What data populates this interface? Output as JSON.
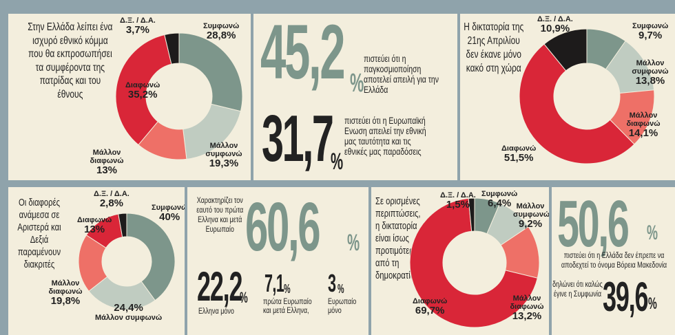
{
  "colors": {
    "green": "#7d968b",
    "lightgreen": "#c0ccc1",
    "red": "#d92638",
    "salmon": "#ee7067",
    "black": "#1d1b1b",
    "panel": "#f3eedd",
    "bg": "#8fa3ab"
  },
  "p1": {
    "text": "Στην Ελλάδα λείπει ένα ισχυρό εθνικό κόμμα που θα εκπροσωπήσει τα συμφέροντα της πατρίδας και του έθνους",
    "labels": {
      "agree": "Συμφωνώ",
      "agree_v": "28,8%",
      "ragree": "Μάλλον συμφωνώ",
      "ragree_v": "19,3%",
      "rdis": "Μάλλον διαφωνώ",
      "rdis_v": "13%",
      "dis": "Διαφωνώ",
      "dis_v": "35,2%",
      "dk": "Δ.Ξ. / Δ.Α.",
      "dk_v": "3,7%"
    }
  },
  "p2": {
    "big1": "45,2",
    "pct1": "%",
    "text1": "πιστεύει ότι η παγκοσμιοποίηση αποτελεί απειλή για την Ελλάδα",
    "big2": "31,7",
    "pct2": "%",
    "text2": "πιστεύει ότι η Ευρωπαϊκή Ενωση απειλεί την εθνική μας ταυτότητα και τις εθνικές μας παραδόσεις"
  },
  "p3": {
    "text": "Η δικτατορία της 21ης Απριλίου δεν έκανε μόνο κακό στη χώρα",
    "labels": {
      "dk": "Δ.Ξ. / Δ.Α.",
      "dk_v": "10,9%",
      "agree": "Συμφωνώ",
      "agree_v": "9,7%",
      "ragree": "Μάλλον συμφωνώ",
      "ragree_v": "13,8%",
      "rdis": "Μάλλον διαφωνώ",
      "rdis_v": "14,1%",
      "dis": "Διαφωνώ",
      "dis_v": "51,5%"
    }
  },
  "p4": {
    "text": "Οι διαφορές ανάμεσα σε Αριστερά και Δεξιά παραμένουν διακριτές",
    "labels": {
      "dk": "Δ.Ξ. / Δ.Α.",
      "dk_v": "2,8%",
      "agree": "Συμφωνώ",
      "agree_v": "40%",
      "dis": "Διαφωνώ",
      "dis_v": "13%",
      "rdis": "Μάλλον διαφωνώ",
      "rdis_v": "19,8%",
      "ragree": "Μάλλον συμφωνώ",
      "ragree_v": "24,4%"
    }
  },
  "p5": {
    "text": "Χαρακτηρίζει τον εαυτό του πρώτα Ελληνα και μετά Ευρωπαίο",
    "big": "60,6",
    "pct": "%",
    "s1_big": "22,2",
    "s1_pct": "%",
    "s1_text": "Ελληνα μόνο",
    "s2_big": "7,1",
    "s2_pct": "%",
    "s2_text": "πρώτα Ευρωπαίο και μετά Ελληνα,",
    "s3_big": "3",
    "s3_pct": "%",
    "s3_text": "Ευρωπαίο μόνο"
  },
  "p6": {
    "text": "Σε ορισμένες περιπτώσεις, η δικτατορία είναι ίσως προτιμότερη από τη δημοκρατία;",
    "labels": {
      "dk": "Δ.Ξ. / Δ.Α.",
      "dk_v": "1,5%",
      "agree": "Συμφωνώ",
      "agree_v": "6,4%",
      "ragree": "Μάλλον συμφωνώ",
      "ragree_v": "9,2%",
      "rdis": "Μάλλον διαφωνώ",
      "rdis_v": "13,2%",
      "dis": "Διαφωνώ",
      "dis_v": "69,7%"
    }
  },
  "p7": {
    "big1": "50,6",
    "pct1": "%",
    "text1": "πιστεύει ότι η Ελλάδα δεν έπρεπε να αποδεχτεί το όνομα Βόρεια Μακεδονία",
    "text2": "δηλώνει ότι καλώς έγινε η Συμφωνία",
    "big2": "39,6",
    "pct2": "%"
  },
  "chart_data": [
    {
      "type": "pie",
      "title": "Στην Ελλάδα λείπει ένα ισχυρό εθνικό κόμμα που θα εκπροσωπήσει τα συμφέροντα της πατρίδας και του έθνους",
      "categories": [
        "Συμφωνώ",
        "Μάλλον συμφωνώ",
        "Μάλλον διαφωνώ",
        "Διαφωνώ",
        "Δ.Ξ. / Δ.Α."
      ],
      "values": [
        28.8,
        19.3,
        13,
        35.2,
        3.7
      ]
    },
    {
      "type": "pie",
      "title": "Η δικτατορία της 21ης Απριλίου δεν έκανε μόνο κακό στη χώρα",
      "categories": [
        "Συμφωνώ",
        "Μάλλον συμφωνώ",
        "Μάλλον διαφωνώ",
        "Διαφωνώ",
        "Δ.Ξ. / Δ.Α."
      ],
      "values": [
        9.7,
        13.8,
        14.1,
        51.5,
        10.9
      ]
    },
    {
      "type": "pie",
      "title": "Οι διαφορές ανάμεσα σε Αριστερά και Δεξιά παραμένουν διακριτές",
      "categories": [
        "Συμφωνώ",
        "Μάλλον συμφωνώ",
        "Μάλλον διαφωνώ",
        "Διαφωνώ",
        "Δ.Ξ. / Δ.Α."
      ],
      "values": [
        40,
        24.4,
        19.8,
        13,
        2.8
      ]
    },
    {
      "type": "pie",
      "title": "Σε ορισμένες περιπτώσεις, η δικτατορία είναι ίσως προτιμότερη από τη δημοκρατία;",
      "categories": [
        "Συμφωνώ",
        "Μάλλον συμφωνώ",
        "Μάλλον διαφωνώ",
        "Διαφωνώ",
        "Δ.Ξ. / Δ.Α."
      ],
      "values": [
        6.4,
        9.2,
        13.2,
        69.7,
        1.5
      ]
    }
  ]
}
